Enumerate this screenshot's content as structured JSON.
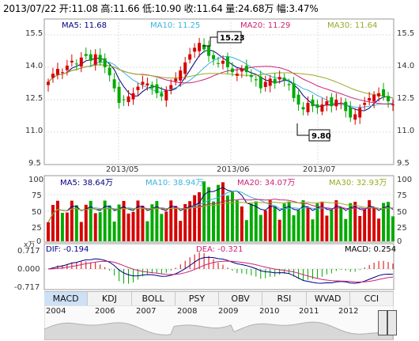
{
  "header": {
    "date": "2013/07/22",
    "open": "开:11.08",
    "high": "高:11.66",
    "low": "低:10.90",
    "close": "收:11.64",
    "volume": "量:24.68万",
    "change": "幅:3.47%"
  },
  "price_panel": {
    "ma5": "MA5: 11.68",
    "ma10": "MA10: 11.25",
    "ma20": "MA20: 11.29",
    "ma30": "MA30: 11.64",
    "y_ticks": [
      "15.5",
      "14.0",
      "12.5",
      "11.0",
      "9.5"
    ],
    "x_labels": [
      "2013/05",
      "2013/06",
      "2013/07"
    ],
    "high_marker": "15.23",
    "low_marker": "9.80"
  },
  "volume_panel": {
    "ma5": "MA5: 38.64万",
    "ma10": "MA10: 38.94万",
    "ma20": "MA20: 34.07万",
    "ma30": "MA30: 32.93万",
    "y_ticks": [
      "100",
      "75",
      "50",
      "25",
      "0"
    ],
    "unit": "x万"
  },
  "macd_panel": {
    "dif": "DIF: -0.194",
    "dea": "DEA: -0.321",
    "macd": "MACD: 0.254",
    "y_ticks": [
      "0.717",
      "0.000",
      "-0.717"
    ]
  },
  "tabs": [
    "MACD",
    "KDJ",
    "BOLL",
    "PSY",
    "OBV",
    "RSI",
    "WVAD",
    "CCI"
  ],
  "years": [
    "2004",
    "2006",
    "2007",
    "2008",
    "2009",
    "2010",
    "2011",
    "2012"
  ],
  "colors": {
    "up": "#d60000",
    "down": "#00aa00",
    "ma5": "#000080",
    "ma10": "#3cb3e0",
    "ma20": "#cc2277",
    "ma30": "#99aa22"
  }
}
